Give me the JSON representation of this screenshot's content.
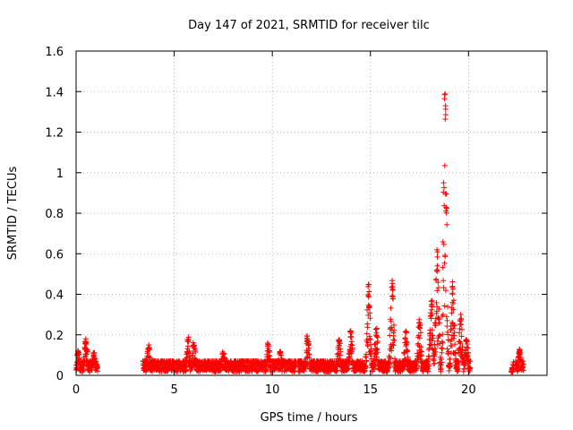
{
  "chart_data": {
    "type": "scatter",
    "title": "Day 147 of 2021, SRMTID for receiver tilc",
    "xlabel": "GPS time / hours",
    "ylabel": "SRMTID / TECUs",
    "xlim": [
      0,
      24
    ],
    "ylim": [
      0,
      1.6
    ],
    "xticks": [
      0,
      5,
      10,
      15,
      20
    ],
    "yticks": [
      0,
      0.2,
      0.4,
      0.6,
      0.8,
      1,
      1.2,
      1.4,
      1.6
    ],
    "xtick_labels": [
      "0",
      "5",
      "10",
      "15",
      "20"
    ],
    "ytick_labels": [
      "0",
      "0.2",
      "0.4",
      "0.6",
      "0.8",
      "1",
      "1.2",
      "1.4",
      "1.6"
    ],
    "grid": true,
    "marker": "+",
    "color": "#ff0000",
    "segments": [
      {
        "start": 0.0,
        "end": 1.1,
        "peaks": [
          [
            0.5,
            0.19
          ],
          [
            0.1,
            0.12
          ],
          [
            0.9,
            0.12
          ]
        ]
      },
      {
        "start": 3.4,
        "end": 9.4,
        "peaks": [
          [
            3.7,
            0.15
          ],
          [
            5.7,
            0.19
          ],
          [
            6.0,
            0.18
          ],
          [
            7.5,
            0.12
          ]
        ]
      },
      {
        "start": 9.4,
        "end": 11.2,
        "peaks": [
          [
            9.8,
            0.16
          ],
          [
            10.4,
            0.12
          ]
        ]
      },
      {
        "start": 11.3,
        "end": 14.6,
        "peaks": [
          [
            11.8,
            0.2
          ],
          [
            13.4,
            0.18
          ],
          [
            14.0,
            0.22
          ]
        ]
      },
      {
        "start": 14.6,
        "end": 15.9,
        "peaks": [
          [
            14.9,
            0.46
          ],
          [
            15.3,
            0.25
          ]
        ]
      },
      {
        "start": 15.9,
        "end": 16.3,
        "peaks": [
          [
            16.1,
            0.47
          ]
        ]
      },
      {
        "start": 16.3,
        "end": 17.8,
        "peaks": [
          [
            16.8,
            0.22
          ],
          [
            17.5,
            0.28
          ]
        ]
      },
      {
        "start": 17.8,
        "end": 20.1,
        "peaks": [
          [
            18.1,
            0.37
          ],
          [
            18.4,
            0.62
          ],
          [
            18.8,
            1.41
          ],
          [
            19.2,
            0.47
          ],
          [
            19.6,
            0.3
          ],
          [
            19.9,
            0.2
          ]
        ]
      },
      {
        "start": 22.2,
        "end": 22.3,
        "peaks": [
          [
            22.2,
            0.02
          ]
        ]
      },
      {
        "start": 22.4,
        "end": 22.8,
        "peaks": [
          [
            22.6,
            0.13
          ]
        ]
      }
    ]
  }
}
